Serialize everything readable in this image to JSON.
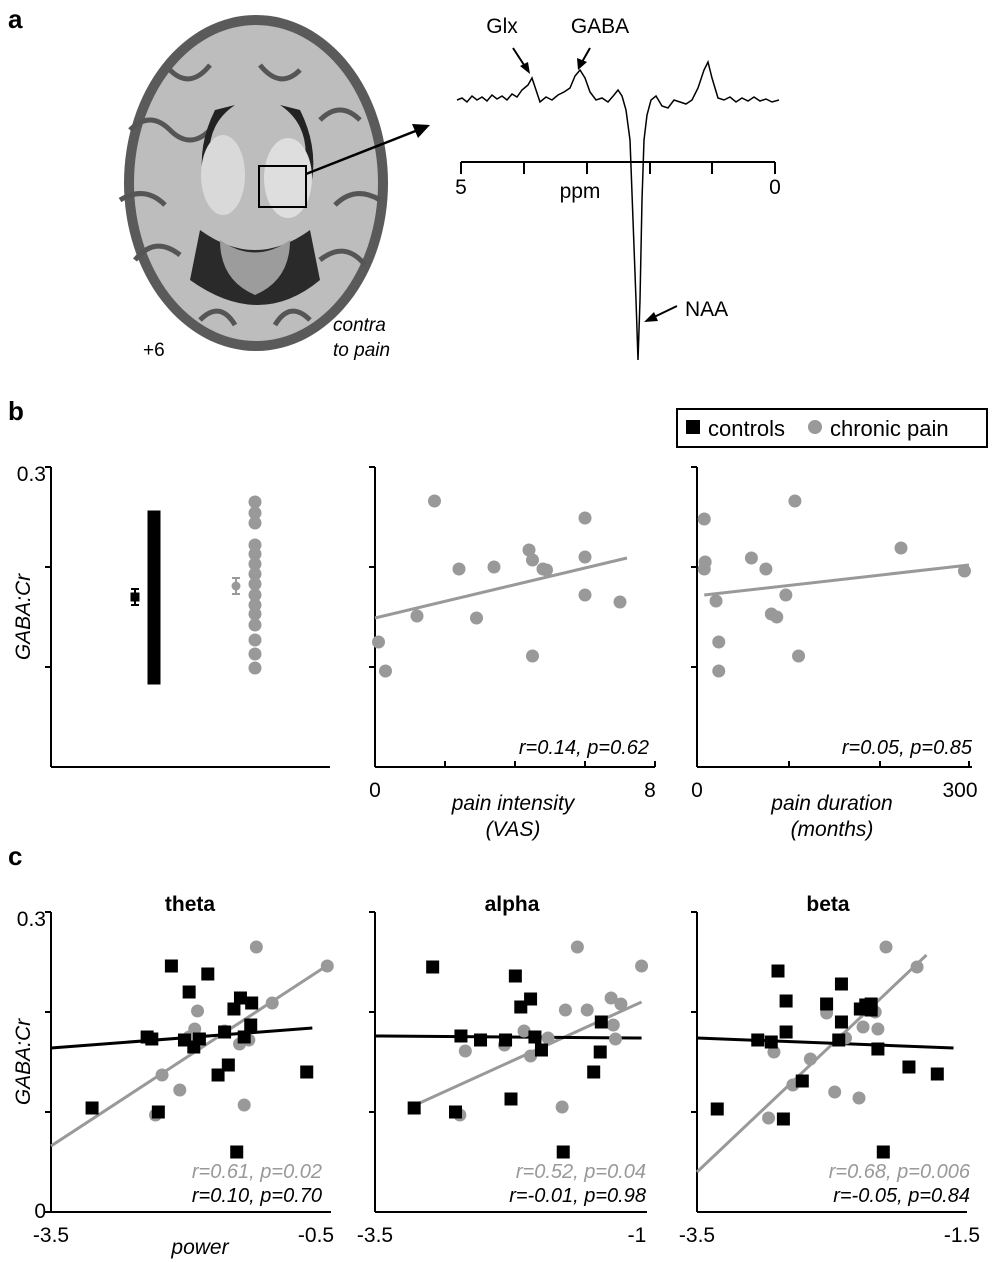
{
  "colors": {
    "controls": "#000000",
    "chronic": "#999999",
    "axis": "#000000"
  },
  "panel_a": {
    "letter": "a",
    "slice_label": "+6",
    "contra_line1": "contra",
    "contra_line2": "to pain",
    "peak_glx": "Glx",
    "peak_gaba": "GABA",
    "peak_naa": "NAA",
    "ppm_label": "ppm",
    "ppm_left": "5",
    "ppm_right": "0"
  },
  "panel_b": {
    "letter": "b"
  },
  "panel_c": {
    "letter": "c"
  },
  "legend": {
    "controls": "controls",
    "chronic": "chronic pain"
  },
  "chart_data": [
    {
      "id": "b1",
      "type": "scatter",
      "ylabel": "GABA:Cr",
      "ylim": [
        0,
        0.3
      ],
      "yticks": [
        "0.3",
        "",
        "",
        ""
      ],
      "xlabel": "",
      "note": "",
      "controls": [
        0.25,
        0.244,
        0.237,
        0.232,
        0.224,
        0.218,
        0.211,
        0.205,
        0.198,
        0.19,
        0.183,
        0.175,
        0.168,
        0.16,
        0.153,
        0.146,
        0.139,
        0.132,
        0.125,
        0.118,
        0.11,
        0.103,
        0.096,
        0.089
      ],
      "chronic": [
        0.265,
        0.254,
        0.244,
        0.222,
        0.213,
        0.203,
        0.193,
        0.183,
        0.172,
        0.162,
        0.153,
        0.142,
        0.127,
        0.113,
        0.099
      ],
      "controls_mean": 0.17,
      "controls_sem": 0.008,
      "chronic_mean": 0.181,
      "chronic_sem": 0.008
    },
    {
      "id": "b2",
      "type": "scatter",
      "xlabel_line1": "pain intensity",
      "xlabel_line2": "(VAS)",
      "xticks": [
        "0",
        "8"
      ],
      "xlim": [
        0,
        8
      ],
      "ylim": [
        0,
        0.3
      ],
      "stats": "r=0.14, p=0.62",
      "points": [
        [
          0.1,
          0.125
        ],
        [
          0.3,
          0.096
        ],
        [
          1.2,
          0.151
        ],
        [
          1.7,
          0.266
        ],
        [
          2.4,
          0.198
        ],
        [
          2.9,
          0.149
        ],
        [
          3.4,
          0.2
        ],
        [
          4.4,
          0.217
        ],
        [
          4.5,
          0.207
        ],
        [
          4.5,
          0.111
        ],
        [
          4.8,
          0.198
        ],
        [
          4.9,
          0.197
        ],
        [
          6.0,
          0.249
        ],
        [
          6.0,
          0.21
        ],
        [
          6.0,
          0.172
        ],
        [
          7.0,
          0.165
        ]
      ],
      "fit": [
        [
          0,
          0.149
        ],
        [
          7.2,
          0.209
        ]
      ]
    },
    {
      "id": "b3",
      "type": "scatter",
      "xlabel_line1": "pain duration",
      "xlabel_line2": "(months)",
      "xticks": [
        "0",
        "300"
      ],
      "xlim": [
        0,
        300
      ],
      "ylim": [
        0,
        0.3
      ],
      "stats": "r=0.05, p=0.85",
      "points": [
        [
          8,
          0.198
        ],
        [
          8,
          0.248
        ],
        [
          9,
          0.205
        ],
        [
          21,
          0.166
        ],
        [
          24,
          0.125
        ],
        [
          24,
          0.096
        ],
        [
          60,
          0.209
        ],
        [
          76,
          0.198
        ],
        [
          82,
          0.153
        ],
        [
          88,
          0.15
        ],
        [
          98,
          0.172
        ],
        [
          108,
          0.266
        ],
        [
          112,
          0.111
        ],
        [
          225,
          0.219
        ],
        [
          295,
          0.196
        ]
      ],
      "fit": [
        [
          8,
          0.172
        ],
        [
          300,
          0.202
        ]
      ]
    },
    {
      "id": "c1",
      "type": "scatter",
      "title": "theta",
      "ylabel": "GABA:Cr",
      "yticks": [
        "0.3",
        "",
        "",
        "0"
      ],
      "xlabel": "power",
      "xticks": [
        "-3.5",
        "-0.5"
      ],
      "xlim": [
        -3.5,
        -0.5
      ],
      "ylim": [
        0,
        0.3
      ],
      "stats_chronic": "r=0.61, p=0.02",
      "stats_controls": "r=0.10, p=0.70",
      "controls": [
        [
          -3.06,
          0.104
        ],
        [
          -2.47,
          0.175
        ],
        [
          -2.42,
          0.173
        ],
        [
          -2.35,
          0.1
        ],
        [
          -2.21,
          0.246
        ],
        [
          -2.07,
          0.172
        ],
        [
          -2.02,
          0.22
        ],
        [
          -1.97,
          0.165
        ],
        [
          -1.91,
          0.173
        ],
        [
          -1.82,
          0.238
        ],
        [
          -1.71,
          0.137
        ],
        [
          -1.64,
          0.18
        ],
        [
          -1.6,
          0.147
        ],
        [
          -1.54,
          0.203
        ],
        [
          -1.51,
          0.06
        ],
        [
          -1.47,
          0.214
        ],
        [
          -1.43,
          0.175
        ],
        [
          -1.35,
          0.209
        ],
        [
          -1.36,
          0.187
        ],
        [
          -0.76,
          0.14
        ]
      ],
      "chronic": [
        [
          -2.38,
          0.097
        ],
        [
          -2.31,
          0.137
        ],
        [
          -2.12,
          0.122
        ],
        [
          -2.02,
          0.175
        ],
        [
          -1.96,
          0.183
        ],
        [
          -1.93,
          0.201
        ],
        [
          -1.64,
          0.181
        ],
        [
          -1.48,
          0.168
        ],
        [
          -1.43,
          0.107
        ],
        [
          -1.38,
          0.172
        ],
        [
          -1.3,
          0.265
        ],
        [
          -1.13,
          0.209
        ],
        [
          -0.54,
          0.246
        ]
      ],
      "fit_controls": [
        [
          -3.5,
          0.164
        ],
        [
          -0.7,
          0.184
        ]
      ],
      "fit_chronic": [
        [
          -3.5,
          0.066
        ],
        [
          -0.5,
          0.249
        ]
      ]
    },
    {
      "id": "c2",
      "type": "scatter",
      "title": "alpha",
      "yticks": [
        "",
        "",
        "",
        ""
      ],
      "xticks": [
        "-3.5",
        "-1"
      ],
      "xlim": [
        -3.5,
        -1
      ],
      "ylim": [
        0,
        0.3
      ],
      "stats_chronic": "r=0.52, p=0.04",
      "stats_controls": "r=-0.01, p=0.98",
      "controls": [
        [
          -3.14,
          0.104
        ],
        [
          -2.97,
          0.245
        ],
        [
          -2.76,
          0.1
        ],
        [
          -2.71,
          0.176
        ],
        [
          -2.53,
          0.172
        ],
        [
          -2.3,
          0.172
        ],
        [
          -2.25,
          0.113
        ],
        [
          -2.21,
          0.236
        ],
        [
          -2.16,
          0.205
        ],
        [
          -2.07,
          0.213
        ],
        [
          -2.03,
          0.175
        ],
        [
          -1.97,
          0.162
        ],
        [
          -1.77,
          0.06
        ],
        [
          -1.49,
          0.14
        ],
        [
          -1.43,
          0.16
        ],
        [
          -1.42,
          0.19
        ]
      ],
      "chronic": [
        [
          -2.72,
          0.097
        ],
        [
          -2.67,
          0.161
        ],
        [
          -2.31,
          0.167
        ],
        [
          -2.13,
          0.181
        ],
        [
          -2.07,
          0.156
        ],
        [
          -1.91,
          0.174
        ],
        [
          -1.75,
          0.202
        ],
        [
          -1.64,
          0.265
        ],
        [
          -1.55,
          0.202
        ],
        [
          -1.33,
          0.214
        ],
        [
          -1.31,
          0.187
        ],
        [
          -1.29,
          0.173
        ],
        [
          -1.24,
          0.208
        ],
        [
          -1.05,
          0.246
        ],
        [
          -1.78,
          0.105
        ]
      ],
      "fit_controls": [
        [
          -3.5,
          0.176
        ],
        [
          -1.05,
          0.174
        ]
      ],
      "fit_chronic": [
        [
          -3.15,
          0.106
        ],
        [
          -1.05,
          0.21
        ]
      ]
    },
    {
      "id": "c3",
      "type": "scatter",
      "title": "beta",
      "yticks": [
        "",
        "",
        "",
        ""
      ],
      "xticks": [
        "-3.5",
        "-1.5"
      ],
      "xlim": [
        -3.5,
        -1.5
      ],
      "ylim": [
        0,
        0.3
      ],
      "stats_chronic": "r=0.68, p=0.006",
      "stats_controls": "r=-0.05, p=0.84",
      "controls": [
        [
          -3.35,
          0.103
        ],
        [
          -3.05,
          0.172
        ],
        [
          -2.95,
          0.17
        ],
        [
          -2.9,
          0.241
        ],
        [
          -2.86,
          0.093
        ],
        [
          -2.84,
          0.211
        ],
        [
          -2.84,
          0.18
        ],
        [
          -2.72,
          0.131
        ],
        [
          -2.54,
          0.208
        ],
        [
          -2.45,
          0.172
        ],
        [
          -2.43,
          0.19
        ],
        [
          -2.43,
          0.228
        ],
        [
          -2.29,
          0.203
        ],
        [
          -2.25,
          0.207
        ],
        [
          -2.21,
          0.202
        ],
        [
          -2.21,
          0.208
        ],
        [
          -2.16,
          0.163
        ],
        [
          -2.12,
          0.06
        ],
        [
          -1.93,
          0.145
        ],
        [
          -1.72,
          0.138
        ]
      ],
      "chronic": [
        [
          -2.97,
          0.094
        ],
        [
          -2.93,
          0.16
        ],
        [
          -2.79,
          0.127
        ],
        [
          -2.66,
          0.153
        ],
        [
          -2.54,
          0.199
        ],
        [
          -2.48,
          0.12
        ],
        [
          -2.4,
          0.174
        ],
        [
          -2.3,
          0.114
        ],
        [
          -2.27,
          0.185
        ],
        [
          -2.18,
          0.2
        ],
        [
          -2.16,
          0.183
        ],
        [
          -2.1,
          0.265
        ],
        [
          -1.87,
          0.245
        ]
      ],
      "fit_controls": [
        [
          -3.5,
          0.174
        ],
        [
          -1.6,
          0.164
        ]
      ],
      "fit_chronic": [
        [
          -3.5,
          0.04
        ],
        [
          -1.8,
          0.257
        ]
      ]
    }
  ]
}
